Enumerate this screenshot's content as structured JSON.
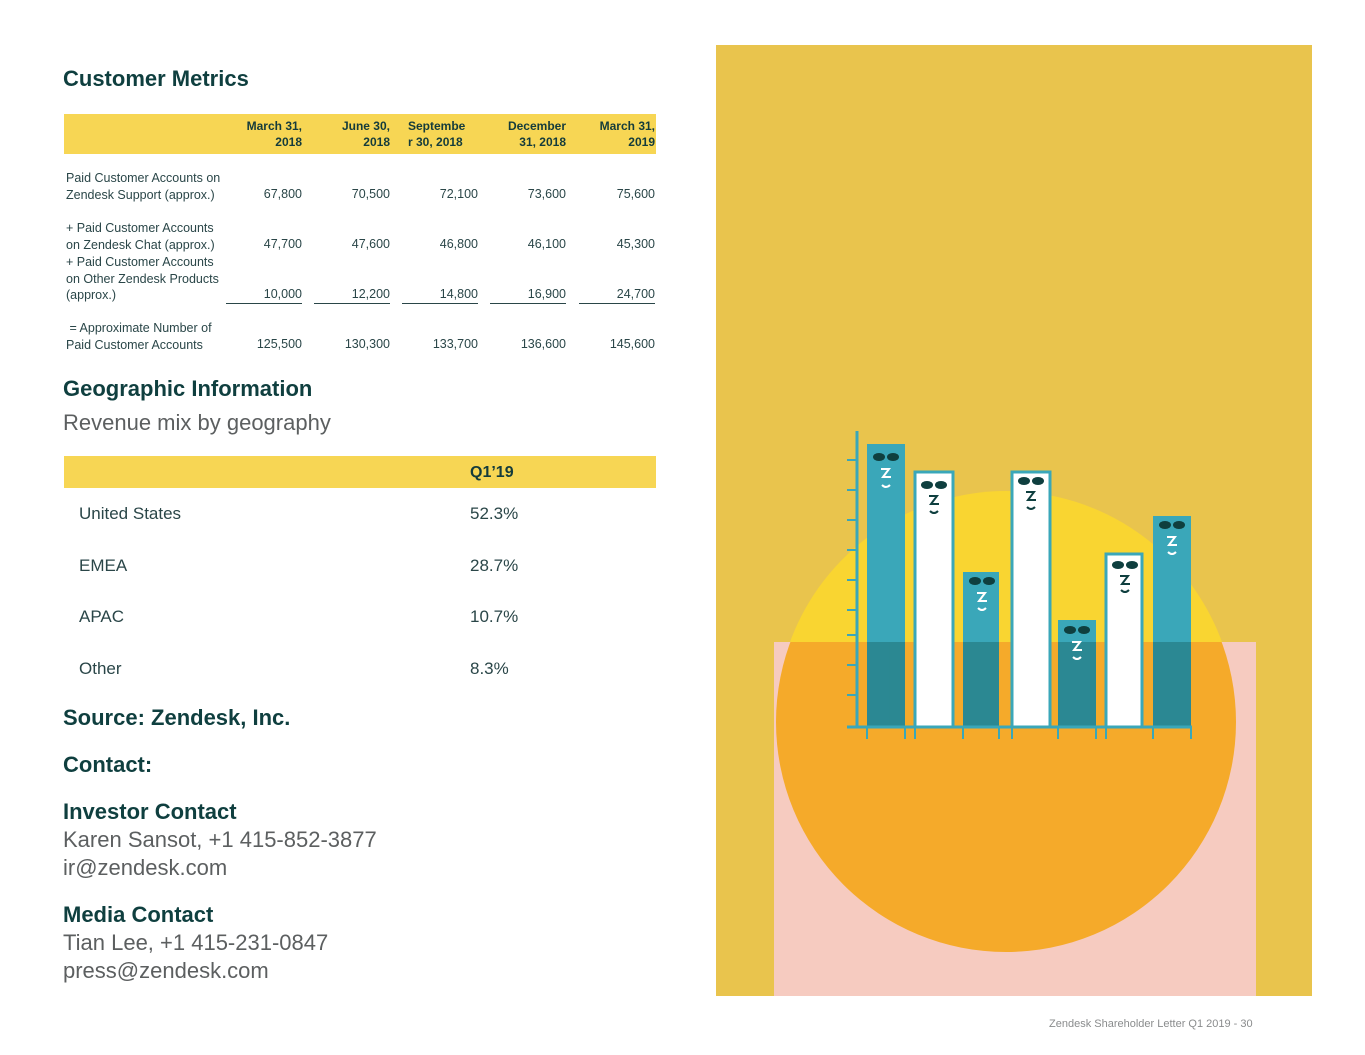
{
  "sections": {
    "customer_metrics": "Customer Metrics",
    "geographic": "Geographic Information",
    "geo_subtitle": "Revenue mix by geography",
    "source": "Source: Zendesk, Inc.",
    "contact": "Contact:",
    "investor_contact": "Investor Contact",
    "media_contact": "Media Contact"
  },
  "metrics": {
    "columns": [
      [
        "March 31,",
        "2018"
      ],
      [
        "June 30,",
        "2018"
      ],
      [
        "Septembe",
        "r 30, 2018"
      ],
      [
        "December",
        "31, 2018"
      ],
      [
        "March 31,",
        "2019"
      ]
    ],
    "rows": [
      {
        "label": [
          "Paid Customer Accounts on",
          "Zendesk Support (approx.)"
        ],
        "values": [
          "67,800",
          "70,500",
          "72,100",
          "73,600",
          "75,600"
        ]
      },
      {
        "label": [
          "+ Paid Customer Accounts",
          "on Zendesk Chat (approx.)"
        ],
        "values": [
          "47,700",
          "47,600",
          "46,800",
          "46,100",
          "45,300"
        ]
      },
      {
        "label": [
          "+ Paid Customer Accounts",
          "on Other Zendesk Products",
          "(approx.)"
        ],
        "values": [
          "10,000",
          "12,200",
          "14,800",
          "16,900",
          "24,700"
        ]
      },
      {
        "label": [
          " = Approximate Number of",
          "Paid Customer Accounts"
        ],
        "values": [
          "125,500",
          "130,300",
          "133,700",
          "136,600",
          "145,600"
        ]
      }
    ]
  },
  "geo": {
    "header": "Q1’19",
    "rows": [
      {
        "region": "United States",
        "pct": "52.3%"
      },
      {
        "region": "EMEA",
        "pct": "28.7%"
      },
      {
        "region": "APAC",
        "pct": "10.7%"
      },
      {
        "region": "Other",
        "pct": "8.3%"
      }
    ]
  },
  "investor": {
    "line1": "Karen Sansot, +1 415-852-3877",
    "line2": "ir@zendesk.com"
  },
  "media": {
    "line1": "Tian Lee, +1 415-231-0847",
    "line2": "press@zendesk.com"
  },
  "footer": "Zendesk Shareholder Letter Q1 2019 - 30",
  "colors": {
    "heading": "#0f3f3f",
    "accent_yellow": "#f7d654",
    "illustration_bg": "#e9c44d",
    "sun": "#f5aa2a",
    "bar_teal": "#3aa7b9",
    "pink": "#f6cbc0"
  }
}
